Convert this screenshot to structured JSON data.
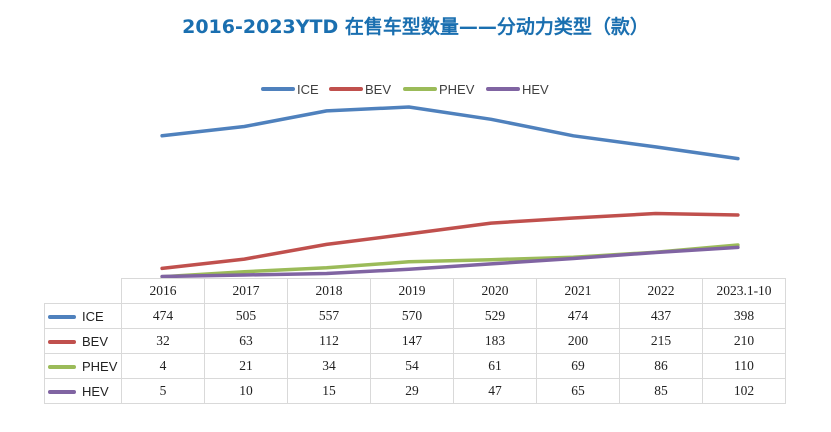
{
  "chart_data": {
    "type": "line",
    "title": "2016-2023YTD 在售车型数量——分动力类型（款）",
    "categories": [
      "2016",
      "2017",
      "2018",
      "2019",
      "2020",
      "2021",
      "2022",
      "2023.1-10"
    ],
    "series": [
      {
        "name": "ICE",
        "color": "#4f81bd",
        "values": [
          474,
          505,
          557,
          570,
          529,
          474,
          437,
          398
        ]
      },
      {
        "name": "BEV",
        "color": "#c0504d",
        "values": [
          32,
          63,
          112,
          147,
          183,
          200,
          215,
          210
        ]
      },
      {
        "name": "PHEV",
        "color": "#9bbb59",
        "values": [
          4,
          21,
          34,
          54,
          61,
          69,
          86,
          110
        ]
      },
      {
        "name": "HEV",
        "color": "#8064a2",
        "values": [
          5,
          10,
          15,
          29,
          47,
          65,
          85,
          102
        ]
      }
    ],
    "ylim": [
      0,
      620
    ],
    "legend": "top-center",
    "grid": false,
    "data_table": true
  }
}
